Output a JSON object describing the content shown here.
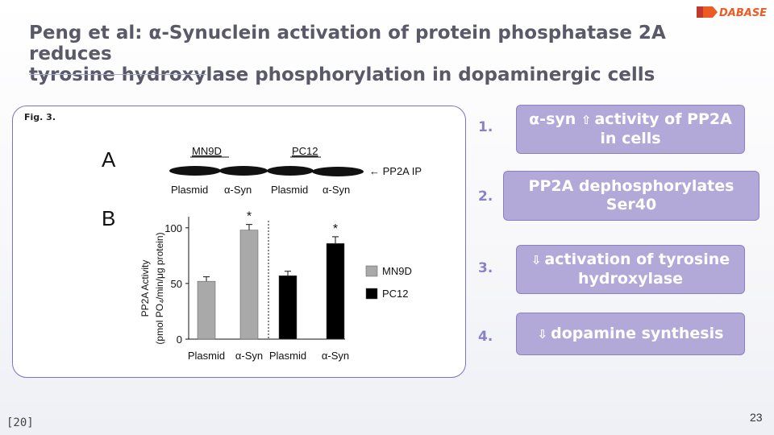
{
  "brand": {
    "logo_text": "DABASE",
    "colors": [
      "#ee5a24",
      "#c0392b"
    ]
  },
  "slide": {
    "title_line1": "Peng et al: α-Synuclein activation of protein phosphatase 2A reduces",
    "title_line2": "tyrosine hydroxylase phosphorylation in dopaminergic cells",
    "page_number": "23",
    "citation": "[20]"
  },
  "figure": {
    "fig_label": "Fig. 3.",
    "panel_a": "A",
    "panel_b": "B",
    "blot_groups": [
      "MN9D",
      "PC12"
    ],
    "blot_arrow_label": "← PP2A IP",
    "blot_lanes": [
      "Plasmid",
      "α-Syn",
      "Plasmid",
      "α-Syn"
    ],
    "chart_data": {
      "type": "bar",
      "categories": [
        "Plasmid",
        "α-Syn",
        "Plasmid",
        "α-Syn"
      ],
      "series": [
        {
          "name": "MN9D",
          "color": "#a9a9a9",
          "values": [
            52,
            98,
            null,
            null
          ],
          "errors": [
            4,
            5,
            null,
            null
          ]
        },
        {
          "name": "PC12",
          "color": "#000000",
          "values": [
            null,
            null,
            57,
            86
          ],
          "errors": [
            null,
            null,
            4,
            6
          ]
        }
      ],
      "significance": [
        "",
        "*",
        "",
        "*"
      ],
      "ylabel_line1": "PP2A Activity",
      "ylabel_line2": "(pmol PO₄/min/μg protein)",
      "yticks": [
        0,
        50,
        100
      ],
      "ylim": [
        0,
        110
      ],
      "legend_position": "right",
      "grid": false
    }
  },
  "steps": [
    {
      "num": "1.",
      "icon": "up-arrow-icon",
      "glyph": "⇧",
      "lead": "α-syn",
      "text": "activity of PP2A in cells"
    },
    {
      "num": "2.",
      "text": "PP2A dephosphorylates Ser40"
    },
    {
      "num": "3.",
      "icon": "down-arrow-icon",
      "glyph": "⇩",
      "text": "activation of tyrosine hydroxylase"
    },
    {
      "num": "4.",
      "icon": "down-arrow-icon",
      "glyph": "⇩",
      "text": "dopamine synthesis"
    }
  ]
}
